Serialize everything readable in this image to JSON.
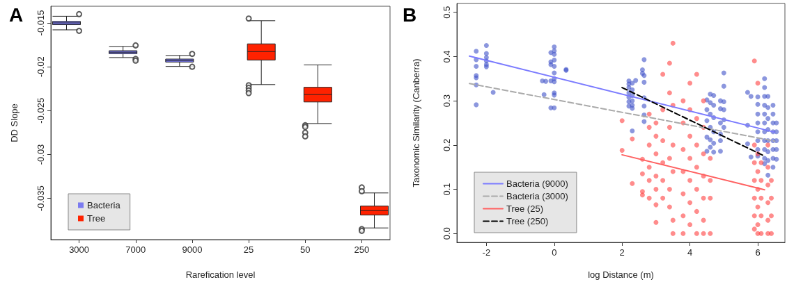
{
  "chart_data": [
    {
      "type": "box",
      "title": "A",
      "xlabel": "Rarefication level",
      "ylabel": "DD Slope",
      "categories": [
        "3000",
        "7000",
        "9000",
        "25",
        "50",
        "250"
      ],
      "ylim": [
        -0.0397,
        -0.0131
      ],
      "yticks": [
        -0.015,
        -0.02,
        -0.025,
        -0.03,
        -0.035
      ],
      "grid": false,
      "legend": "bottom left",
      "series": [
        {
          "name": "Bacteria",
          "color": "#7b7bf0",
          "boxes": [
            {
              "low": -0.01579,
              "q1": -0.0152,
              "median": -0.015,
              "q3": -0.01483,
              "high": -0.01424,
              "outliers": [
                -0.014,
                -0.0159
              ]
            },
            {
              "low": -0.01895,
              "q1": -0.01851,
              "median": -0.01834,
              "q3": -0.01817,
              "high": -0.01768,
              "outliers": [
                -0.01756,
                -0.0191,
                -0.0193
              ]
            },
            {
              "low": -0.01996,
              "q1": -0.01946,
              "median": -0.0193,
              "q3": -0.01912,
              "high": -0.01871,
              "outliers": [
                -0.01853,
                -0.02
              ]
            },
            null,
            null,
            null
          ]
        },
        {
          "name": "Tree",
          "color": "#ff2200",
          "boxes": [
            null,
            null,
            null,
            {
              "low": -0.02203,
              "q1": -0.01923,
              "median": -0.01827,
              "q3": -0.01739,
              "high": -0.01475,
              "outliers": [
                -0.0145,
                -0.0221,
                -0.0224,
                -0.0227,
                -0.023
              ]
            },
            {
              "low": -0.02647,
              "q1": -0.02401,
              "median": -0.02316,
              "q3": -0.02234,
              "high": -0.01979,
              "outliers": [
                -0.02667,
                -0.02686,
                -0.02751,
                -0.02793
              ]
            },
            {
              "low": -0.03837,
              "q1": -0.0369,
              "median": -0.03639,
              "q3": -0.03588,
              "high": -0.03438,
              "outliers": [
                -0.03375,
                -0.03418,
                -0.0385,
                -0.0387
              ]
            }
          ]
        }
      ]
    },
    {
      "type": "scatter",
      "title": "B",
      "xlabel": "log Distance (m)",
      "ylabel": "Taxonomic Similarity (Canberra)",
      "xlim": [
        -2.87,
        6.8
      ],
      "ylim": [
        -0.02,
        0.52
      ],
      "xticks": [
        -2,
        0,
        2,
        4,
        6
      ],
      "yticks": [
        {
          "value": 0,
          "label": "0.0"
        },
        0.1,
        0.2,
        0.3,
        0.4,
        0.5
      ],
      "grid": false,
      "legend": "bottom left",
      "series": [
        {
          "color": "#3f51c8",
          "marker": "circle",
          "x": [
            -2.3,
            -2.3,
            -2.3,
            -2.3,
            -2.3,
            -2.3,
            -2.3,
            -2,
            -2,
            -2,
            -2,
            -2,
            -2,
            -1.8,
            -0.35,
            -0.25,
            -0.3,
            -0.1,
            -0.1,
            -0.1,
            -0.1,
            -0.1,
            0,
            0,
            0,
            0,
            0,
            0,
            0,
            0,
            0,
            0,
            0,
            0.35,
            0.35,
            2.2,
            2.2,
            2.2,
            2.2,
            2.2,
            2.2,
            2.2,
            2.3,
            2.3,
            2.3,
            2.3,
            2.3,
            2.3,
            2.3,
            2.4,
            2.6,
            2.6,
            2.65,
            2.65,
            2.65,
            2.65,
            2.65,
            2.65,
            2.65,
            4.5,
            4.5,
            4.5,
            4.5,
            4.5,
            4.6,
            4.6,
            4.6,
            4.6,
            4.6,
            4.6,
            4.7,
            4.7,
            4.7,
            4.7,
            4.7,
            4.7,
            4.9,
            4.9,
            4.9,
            4.9,
            4.9,
            4.9,
            5,
            5,
            5,
            5,
            5,
            5,
            5.7,
            5.7,
            5.7,
            5.8,
            5.8,
            6,
            6,
            6,
            6,
            6,
            6,
            6,
            6,
            6.2,
            6.2,
            6.2,
            6.2,
            6.2,
            6.2,
            6.2,
            6.2,
            6.2,
            6.2,
            6.2,
            6.3,
            6.3,
            6.3,
            6.3,
            6.3,
            6.3,
            6.3,
            6.3,
            6.45,
            6.45,
            6.45,
            6.45,
            6.45,
            6.45,
            6.45,
            6.45,
            6.55,
            6.55,
            6.55,
            6.55,
            6.55
          ],
          "values": [
            0.412,
            0.393,
            0.378,
            0.357,
            0.352,
            0.336,
            0.291,
            0.425,
            0.407,
            0.398,
            0.39,
            0.382,
            0.377,
            0.319,
            0.345,
            0.344,
            0.314,
            0.409,
            0.388,
            0.382,
            0.345,
            0.284,
            0.422,
            0.413,
            0.405,
            0.392,
            0.378,
            0.363,
            0.35,
            0.343,
            0.318,
            0.313,
            0.284,
            0.371,
            0.369,
            0.345,
            0.338,
            0.33,
            0.318,
            0.308,
            0.298,
            0.288,
            0.34,
            0.325,
            0.312,
            0.3,
            0.29,
            0.283,
            0.232,
            0.346,
            0.37,
            0.362,
            0.393,
            0.357,
            0.342,
            0.307,
            0.288,
            0.268,
            0.253,
            0.302,
            0.28,
            0.255,
            0.218,
            0.186,
            0.315,
            0.296,
            0.27,
            0.24,
            0.212,
            0.195,
            0.312,
            0.29,
            0.262,
            0.23,
            0.204,
            0.184,
            0.3,
            0.282,
            0.25,
            0.225,
            0.21,
            0.186,
            0.363,
            0.333,
            0.298,
            0.28,
            0.257,
            0.24,
            0.319,
            0.245,
            0.203,
            0.31,
            0.173,
            0.309,
            0.292,
            0.27,
            0.25,
            0.23,
            0.21,
            0.19,
            0.175,
            0.35,
            0.33,
            0.31,
            0.29,
            0.27,
            0.25,
            0.23,
            0.21,
            0.19,
            0.17,
            0.158,
            0.31,
            0.285,
            0.26,
            0.235,
            0.21,
            0.185,
            0.165,
            0.132,
            0.29,
            0.27,
            0.25,
            0.23,
            0.21,
            0.19,
            0.17,
            0.15,
            0.25,
            0.23,
            0.21,
            0.19,
            0.168
          ]
        },
        {
          "color": "#ff4040",
          "marker": "circle",
          "x": [
            2,
            2,
            2.3,
            2.3,
            2.6,
            2.6,
            2.6,
            2.6,
            2.8,
            2.8,
            2.8,
            2.8,
            2.8,
            2.8,
            3,
            3,
            3,
            3,
            3,
            3,
            3,
            3.2,
            3.2,
            3.2,
            3.2,
            3.2,
            3.2,
            3.4,
            3.4,
            3.4,
            3.4,
            3.4,
            3.4,
            3.5,
            3.5,
            3.5,
            3.5,
            3.5,
            3.5,
            3.8,
            3.8,
            3.8,
            3.8,
            3.8,
            3.8,
            3.8,
            4,
            4,
            4,
            4,
            4,
            4,
            4,
            4.2,
            4.2,
            4.2,
            4.2,
            4.2,
            4.2,
            4.2,
            4.4,
            4.4,
            4.4,
            4.4,
            4.4,
            4.4,
            4.4,
            4.6,
            4.6,
            4.6,
            4.6,
            5.9,
            5.9,
            5.9,
            5.9,
            5.9,
            5.9,
            5.9,
            6,
            6,
            6,
            6,
            6,
            6,
            6,
            6.1,
            6.1,
            6.1,
            6.1,
            6.1,
            6.3,
            6.3,
            6.3,
            6.3,
            6.3,
            6.3,
            6.4,
            6.4,
            6.4,
            6.4
          ],
          "values": [
            0.255,
            0.188,
            0.214,
            0.113,
            0.168,
            0.135,
            0.095,
            0.087,
            0.27,
            0.24,
            0.2,
            0.15,
            0.12,
            0.08,
            0.25,
            0.22,
            0.18,
            0.13,
            0.1,
            0.065,
            0.025,
            0.36,
            0.28,
            0.21,
            0.16,
            0.12,
            0.08,
            0.385,
            0.318,
            0.24,
            0.17,
            0.1,
            0.06,
            0.43,
            0.29,
            0.2,
            0.14,
            0.03,
            0,
            0.3,
            0.25,
            0.19,
            0.14,
            0.09,
            0.04,
            0,
            0.34,
            0.28,
            0.22,
            0.17,
            0.12,
            0.07,
            0.02,
            0.36,
            0.26,
            0.2,
            0.15,
            0.1,
            0.05,
            0,
            0.3,
            0.24,
            0.18,
            0.13,
            0.08,
            0.03,
            0,
            0.17,
            0.12,
            0.08,
            0,
            0.39,
            0.2,
            0.16,
            0.12,
            0.08,
            0.04,
            0.01,
            0.34,
            0.18,
            0.14,
            0.1,
            0.06,
            0.02,
            0,
            0.16,
            0.12,
            0.08,
            0.04,
            0,
            0.2,
            0.15,
            0.11,
            0.07,
            0.03,
            0,
            0.12,
            0.08,
            0.04,
            0
          ]
        },
        {
          "type": "line",
          "name": "Bacteria (9000)",
          "color": "#7b7bff",
          "line_style": "solid",
          "x": [
            -2.5,
            6.5
          ],
          "values": [
            0.401,
            0.229
          ]
        },
        {
          "type": "line",
          "name": "Bacteria (3000)",
          "color": "#aaaaaa",
          "line_style": "dashed",
          "x": [
            -2.5,
            6.5
          ],
          "values": [
            0.339,
            0.209
          ]
        },
        {
          "type": "line",
          "name": "Tree (25)",
          "color": "#ff6060",
          "line_style": "solid",
          "x": [
            2,
            6.2
          ],
          "values": [
            0.178,
            0.099
          ]
        },
        {
          "type": "line",
          "name": "Tree (250)",
          "color": "#000000",
          "line_style": "dashed",
          "x": [
            2,
            6.2
          ],
          "values": [
            0.33,
            0.175
          ]
        }
      ]
    }
  ]
}
